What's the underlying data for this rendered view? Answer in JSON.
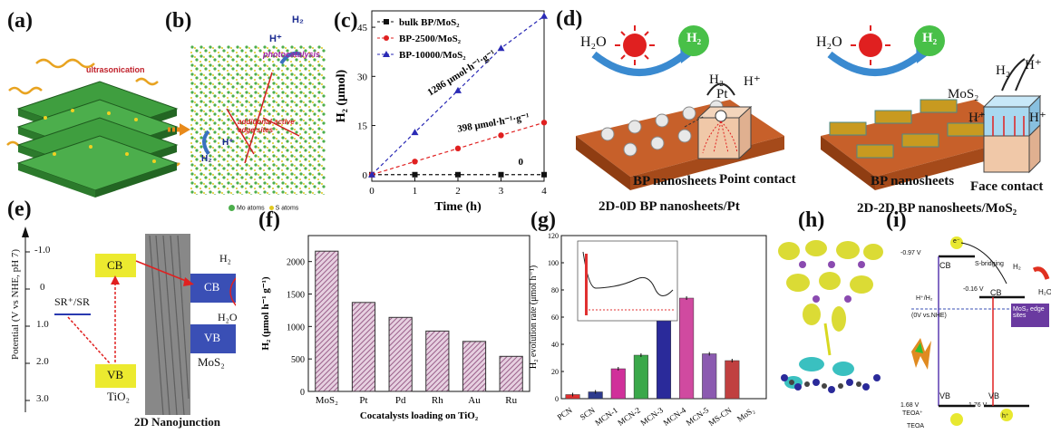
{
  "panel_labels": {
    "a": "(a)",
    "b": "(b)",
    "c": "(c)",
    "d": "(d)",
    "e": "(e)",
    "f": "(f)",
    "g": "(g)",
    "h": "(h)",
    "i": "(i)"
  },
  "panel_a": {
    "ultrasonication": "ultrasonication"
  },
  "panel_b": {
    "h_plus": "H⁺",
    "h2": "H₂",
    "photocatalysis": "photocatalysis",
    "edge_sites": "additional active edge sites",
    "h_plus2": "H⁺",
    "h2b": "H₂",
    "legend_mo": "Mo atoms",
    "legend_s": "S atoms"
  },
  "panel_d": {
    "left": {
      "h2o": "H₂O",
      "h2": "H₂",
      "pt": "Pt",
      "h2b": "H₂",
      "hplus": "H⁺",
      "contact": "Point contact",
      "sheets": "BP nanosheets",
      "caption": "2D-0D BP nanosheets/Pt"
    },
    "right": {
      "h2o": "H₂O",
      "h2": "H₂",
      "mos2": "MoS₂",
      "h2b": "H₂",
      "hplus1": "H⁺",
      "hplus2": "H⁺",
      "hplus3": "H⁺",
      "contact": "Face contact",
      "sheets": "BP nanosheets",
      "caption": "2D-2D BP nanosheets/MoS₂"
    }
  },
  "panel_e": {
    "ylabel": "Potential (V vs NHE, pH 7)",
    "yticks": [
      "-1.0",
      "0",
      "1.0",
      "2.0",
      "3.0"
    ],
    "cb": "CB",
    "vb": "VB",
    "tio2": "TiO₂",
    "sr": "SR⁺/SR",
    "cb2": "CB",
    "vb2": "VB",
    "mos2": "MoS₂",
    "h2": "H₂",
    "h2o": "H₂O",
    "caption": "2D Nanojunction"
  },
  "panel_h": {},
  "panel_i": {
    "v1": "-0.97 V",
    "cb": "CB",
    "sbridge": "S-bridging",
    "v2": "-0.16 V",
    "cb2": "CB",
    "hh2": "H⁺/H₂",
    "ref": "(0V vs.NHE)",
    "mos2": "MoS₂ edge sites",
    "h2": "H₂",
    "h2o": "H₂O",
    "vb": "VB",
    "vb2": "VB",
    "v3": "1.68 V",
    "v4": "1.76 V",
    "teoa1": "TEOA⁺",
    "teoa2": "TEOA",
    "e": "e⁻",
    "h": "h⁺"
  },
  "colors": {
    "bp": "#b5541a",
    "mos2_layer": "#4cae4c",
    "tio2": "#ecea2f",
    "mos2_band": "#3a4fb5",
    "bar_f": "#9a5f8a"
  },
  "chart_data": [
    {
      "panel": "c",
      "type": "line",
      "xlabel": "Time (h)",
      "ylabel": "H₂ (μmol)",
      "xticks": [
        "0",
        "1",
        "2",
        "3",
        "4"
      ],
      "yticks": [
        "0",
        "15",
        "30",
        "45"
      ],
      "xlim": [
        0,
        4
      ],
      "ylim": [
        -2,
        50
      ],
      "series": [
        {
          "name": "bulk BP/MoS₂",
          "x": [
            0,
            1,
            2,
            3,
            4
          ],
          "values": [
            0,
            0,
            0,
            0,
            0
          ],
          "color": "#111111",
          "marker": "square"
        },
        {
          "name": "BP-2500/MoS₂",
          "x": [
            0,
            1,
            2,
            3,
            4
          ],
          "values": [
            0,
            4,
            8,
            12,
            15.9
          ],
          "color": "#e02020",
          "marker": "circle"
        },
        {
          "name": "BP-10000/MoS₂",
          "x": [
            0,
            1,
            2,
            3,
            4
          ],
          "values": [
            0,
            12.9,
            25.7,
            38.6,
            48.4
          ],
          "color": "#2a2ab5",
          "marker": "triangle"
        }
      ],
      "annotations": [
        "1286 μmol·h⁻¹·g⁻¹",
        "398 μmol·h⁻¹·g⁻¹",
        "0"
      ]
    },
    {
      "panel": "f",
      "type": "bar",
      "xlabel": "Cocatalysts loading on TiO₂",
      "ylabel": "H₂ (μmol h⁻¹ g⁻¹)",
      "categories": [
        "MoS₂",
        "Pt",
        "Pd",
        "Rh",
        "Au",
        "Ru"
      ],
      "values": [
        2160,
        1370,
        1140,
        930,
        770,
        540
      ],
      "yticks": [
        "0",
        "500",
        "1000",
        "1500",
        "2000"
      ],
      "ylim": [
        0,
        2400
      ]
    },
    {
      "panel": "g",
      "type": "bar",
      "xlabel": "",
      "ylabel": "H₂ evolution rate (μmol h⁻¹)",
      "categories": [
        "PCN",
        "SCN",
        "MCN-1",
        "MCN-2",
        "MCN-3",
        "MCN-4",
        "MCN-5",
        "MS-CN",
        "MoS₂"
      ],
      "values": [
        3,
        5,
        22,
        32,
        106,
        74,
        33,
        28,
        0
      ],
      "colors": [
        "#e03030",
        "#2d3a8c",
        "#d0309a",
        "#3aa84a",
        "#2a2a9a",
        "#d04aa0",
        "#8b5ab0",
        "#c04040",
        "#cccccc"
      ],
      "yticks": [
        "0",
        "20",
        "40",
        "60",
        "80",
        "100",
        "120"
      ],
      "ylim": [
        0,
        120
      ]
    }
  ]
}
